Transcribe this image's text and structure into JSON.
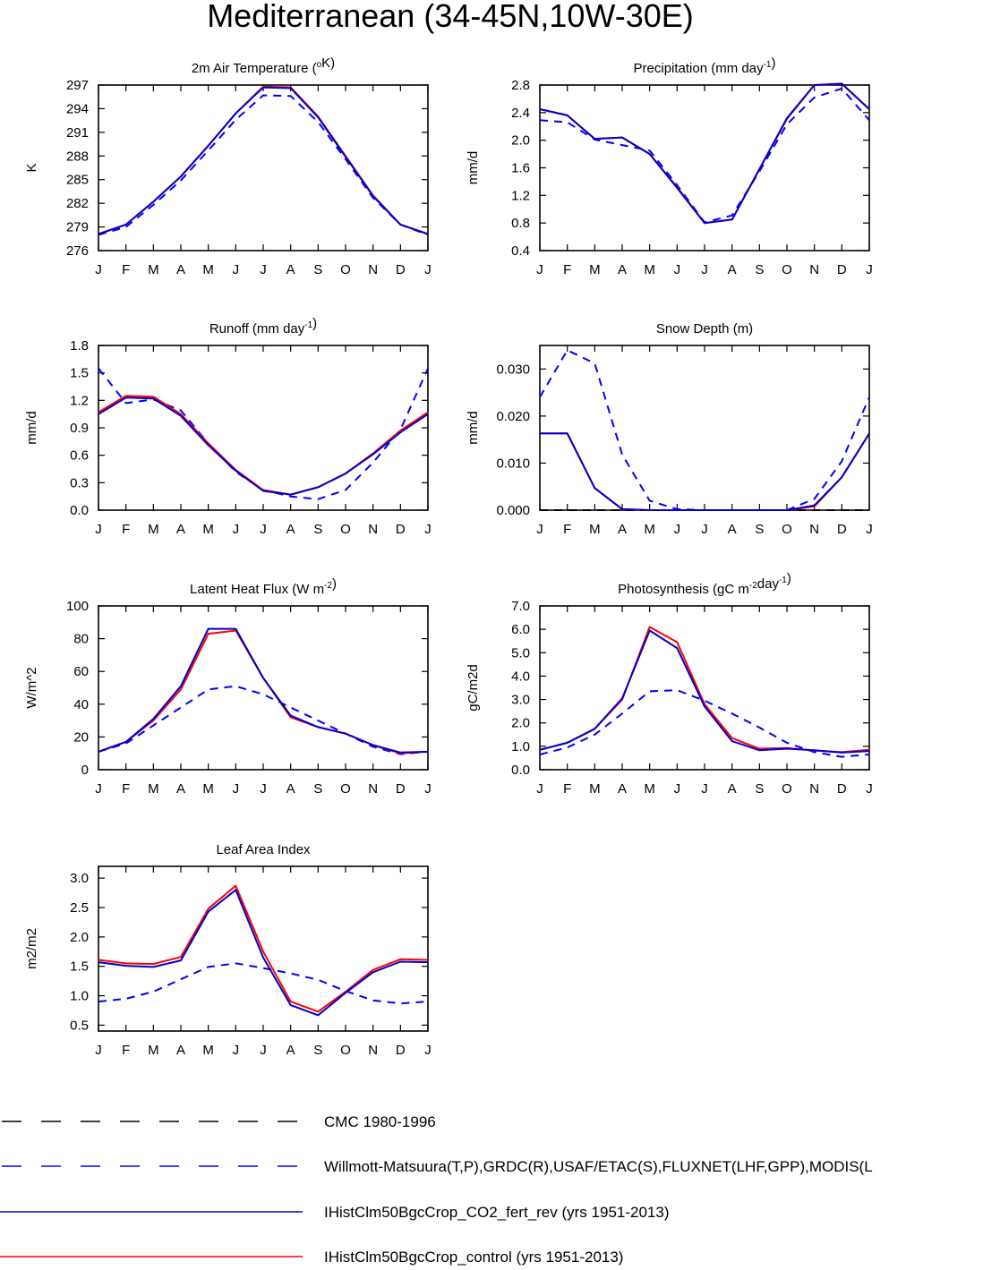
{
  "page": {
    "title": "Mediterranean (34-45N,10W-30E)"
  },
  "months": [
    "J",
    "F",
    "M",
    "A",
    "M",
    "J",
    "J",
    "A",
    "S",
    "O",
    "N",
    "D",
    "J"
  ],
  "colors": {
    "obs_cmc": "#000000",
    "obs": "#0000ff",
    "co2": "#0000cd",
    "control": "#ff0000"
  },
  "legend": [
    {
      "label": "CMC 1980-1996",
      "color": "#000000",
      "dash": true
    },
    {
      "label": "Willmott-Matsuura(T,P),GRDC(R),USAF/ETAC(S),FLUXNET(LHF,GPP),MODIS(L",
      "color": "#0000ff",
      "dash": true
    },
    {
      "label": "IHistClm50BgcCrop_CO2_fert_rev (yrs 1951-2013)",
      "color": "#0000cd",
      "dash": false
    },
    {
      "label": "IHistClm50BgcCrop_control (yrs 1951-2013)",
      "color": "#ff0000",
      "dash": false
    }
  ],
  "chart_data": [
    {
      "type": "line",
      "title": "2m Air Temperature (oK)",
      "title_parts": [
        "2m Air Temperature (",
        "o",
        "K)"
      ],
      "ylabel": "K",
      "ylim": [
        276,
        297
      ],
      "yticks": [
        276,
        279,
        282,
        285,
        288,
        291,
        294,
        297
      ],
      "yfmt": 0,
      "series": [
        {
          "values": [
            278.0,
            279.0,
            281.8,
            284.9,
            288.7,
            292.6,
            295.7,
            295.6,
            292.3,
            287.6,
            282.7,
            279.3,
            278.0
          ],
          "color": "#0000ff",
          "dash": true
        },
        {
          "values": [
            278.1,
            279.3,
            282.2,
            285.4,
            289.3,
            293.4,
            296.8,
            296.7,
            293.0,
            288.0,
            283.0,
            279.3,
            278.1
          ],
          "color": "#ff0000",
          "dash": false
        },
        {
          "values": [
            278.1,
            279.3,
            282.2,
            285.4,
            289.3,
            293.4,
            296.7,
            296.6,
            292.9,
            287.9,
            282.9,
            279.3,
            278.1
          ],
          "color": "#0000cd",
          "dash": false
        }
      ]
    },
    {
      "type": "line",
      "title": "Precipitation (mm day-1)",
      "title_parts": [
        "Precipitation (mm day",
        "-1",
        ")"
      ],
      "ylabel": "mm/d",
      "ylim": [
        0.4,
        2.8
      ],
      "yticks": [
        0.4,
        0.8,
        1.2,
        1.6,
        2.0,
        2.4,
        2.8
      ],
      "yfmt": 1,
      "series": [
        {
          "values": [
            2.29,
            2.26,
            2.01,
            1.93,
            1.85,
            1.35,
            0.81,
            0.91,
            1.55,
            2.23,
            2.62,
            2.75,
            2.29
          ],
          "color": "#0000ff",
          "dash": true
        },
        {
          "values": [
            2.45,
            2.36,
            2.02,
            2.04,
            1.8,
            1.32,
            0.8,
            0.85,
            1.58,
            2.31,
            2.8,
            2.82,
            2.45
          ],
          "color": "#ff0000",
          "dash": false
        },
        {
          "values": [
            2.45,
            2.36,
            2.02,
            2.04,
            1.8,
            1.31,
            0.8,
            0.85,
            1.58,
            2.32,
            2.8,
            2.82,
            2.45
          ],
          "color": "#0000cd",
          "dash": false
        }
      ]
    },
    {
      "type": "line",
      "title": "Runoff (mm day-1)",
      "title_parts": [
        "Runoff (mm day",
        "-1",
        ")"
      ],
      "ylabel": "mm/d",
      "ylim": [
        0.0,
        1.8
      ],
      "yticks": [
        0.0,
        0.3,
        0.6,
        0.9,
        1.2,
        1.5,
        1.8
      ],
      "yfmt": 1,
      "series": [
        {
          "values": [
            1.55,
            1.17,
            1.21,
            1.09,
            0.73,
            0.42,
            0.22,
            0.15,
            0.12,
            0.22,
            0.52,
            0.88,
            1.55
          ],
          "color": "#0000ff",
          "dash": true
        },
        {
          "values": [
            1.07,
            1.25,
            1.24,
            1.05,
            0.73,
            0.44,
            0.22,
            0.17,
            0.25,
            0.4,
            0.62,
            0.87,
            1.07
          ],
          "color": "#ff0000",
          "dash": false
        },
        {
          "values": [
            1.05,
            1.23,
            1.22,
            1.03,
            0.71,
            0.43,
            0.21,
            0.17,
            0.25,
            0.4,
            0.61,
            0.85,
            1.05
          ],
          "color": "#0000cd",
          "dash": false
        }
      ]
    },
    {
      "type": "line",
      "title": "Snow Depth (m)",
      "title_parts": [
        "Snow Depth (m)",
        "",
        ""
      ],
      "ylabel": "mm/d",
      "ylim": [
        0.0,
        0.035
      ],
      "yticks": [
        0.0,
        0.01,
        0.02,
        0.03
      ],
      "yfmt": 3,
      "series": [
        {
          "values": [
            0,
            0,
            0,
            0,
            0,
            0,
            0,
            0,
            0,
            0,
            0,
            0,
            0
          ],
          "color": "#000000",
          "dash": true
        },
        {
          "values": [
            0.024,
            0.034,
            0.0312,
            0.0118,
            0.002,
            0.0002,
            0.0,
            0.0,
            0.0,
            0.0,
            0.0024,
            0.0104,
            0.024
          ],
          "color": "#0000ff",
          "dash": true
        },
        {
          "values": [
            0.0163,
            0.0163,
            0.0047,
            0.0002,
            0.0,
            0.0,
            0.0,
            0.0,
            0.0,
            0.0,
            0.0008,
            0.007,
            0.0163
          ],
          "color": "#ff0000",
          "dash": false
        },
        {
          "values": [
            0.0163,
            0.0163,
            0.0047,
            0.0002,
            0.0,
            0.0,
            0.0,
            0.0,
            0.0,
            0.0,
            0.001,
            0.007,
            0.0163
          ],
          "color": "#0000cd",
          "dash": false
        }
      ]
    },
    {
      "type": "line",
      "title": "Latent Heat Flux (W m-2)",
      "title_parts": [
        "Latent Heat Flux (W m",
        "-2",
        ")"
      ],
      "ylabel": "W/m^2",
      "ylim": [
        0,
        100
      ],
      "yticks": [
        0,
        20,
        40,
        60,
        80,
        100
      ],
      "yfmt": 0,
      "series": [
        {
          "values": [
            11,
            16,
            27,
            38,
            49,
            51,
            46,
            38,
            30,
            22,
            14,
            9.5,
            11
          ],
          "color": "#0000ff",
          "dash": true
        },
        {
          "values": [
            11,
            17,
            30,
            49,
            83,
            85,
            56,
            32,
            26,
            22,
            15,
            10,
            11
          ],
          "color": "#ff0000",
          "dash": false
        },
        {
          "values": [
            11,
            17,
            31,
            51,
            86,
            86,
            56,
            33,
            26,
            22,
            15,
            10.5,
            11
          ],
          "color": "#0000cd",
          "dash": false
        }
      ]
    },
    {
      "type": "line",
      "title": "Photosynthesis (gC m-2day-1)",
      "title_parts": [
        "Photosynthesis (gC m",
        "-2",
        "day",
        "-1",
        ")"
      ],
      "ylabel": "gC/m2d",
      "ylim": [
        0.0,
        7.0
      ],
      "yticks": [
        0.0,
        1.0,
        2.0,
        3.0,
        4.0,
        5.0,
        6.0,
        7.0
      ],
      "yfmt": 1,
      "series": [
        {
          "values": [
            0.65,
            0.95,
            1.5,
            2.4,
            3.35,
            3.4,
            2.95,
            2.4,
            1.8,
            1.15,
            0.75,
            0.55,
            0.65
          ],
          "color": "#0000ff",
          "dash": true
        },
        {
          "values": [
            0.85,
            1.15,
            1.75,
            3.0,
            6.1,
            5.45,
            2.8,
            1.35,
            0.9,
            0.93,
            0.82,
            0.75,
            0.85
          ],
          "color": "#ff0000",
          "dash": false
        },
        {
          "values": [
            0.85,
            1.15,
            1.75,
            3.05,
            5.95,
            5.2,
            2.7,
            1.22,
            0.83,
            0.9,
            0.83,
            0.73,
            0.8
          ],
          "color": "#0000cd",
          "dash": false
        }
      ]
    },
    {
      "type": "line",
      "title": "Leaf Area Index",
      "title_parts": [
        "Leaf Area Index",
        "",
        ""
      ],
      "ylabel": "m2/m2",
      "ylim": [
        0.4,
        3.2
      ],
      "yticks": [
        0.5,
        1.0,
        1.5,
        2.0,
        2.5,
        3.0
      ],
      "yfmt": 1,
      "series": [
        {
          "values": [
            0.9,
            0.95,
            1.07,
            1.28,
            1.49,
            1.55,
            1.47,
            1.38,
            1.27,
            1.08,
            0.92,
            0.87,
            0.9
          ],
          "color": "#0000ff",
          "dash": true
        },
        {
          "values": [
            1.61,
            1.55,
            1.54,
            1.66,
            2.48,
            2.87,
            1.75,
            0.9,
            0.73,
            1.07,
            1.44,
            1.62,
            1.61
          ],
          "color": "#ff0000",
          "dash": false
        },
        {
          "values": [
            1.57,
            1.51,
            1.49,
            1.6,
            2.43,
            2.8,
            1.65,
            0.84,
            0.67,
            1.05,
            1.4,
            1.58,
            1.57
          ],
          "color": "#0000cd",
          "dash": false
        }
      ]
    }
  ]
}
